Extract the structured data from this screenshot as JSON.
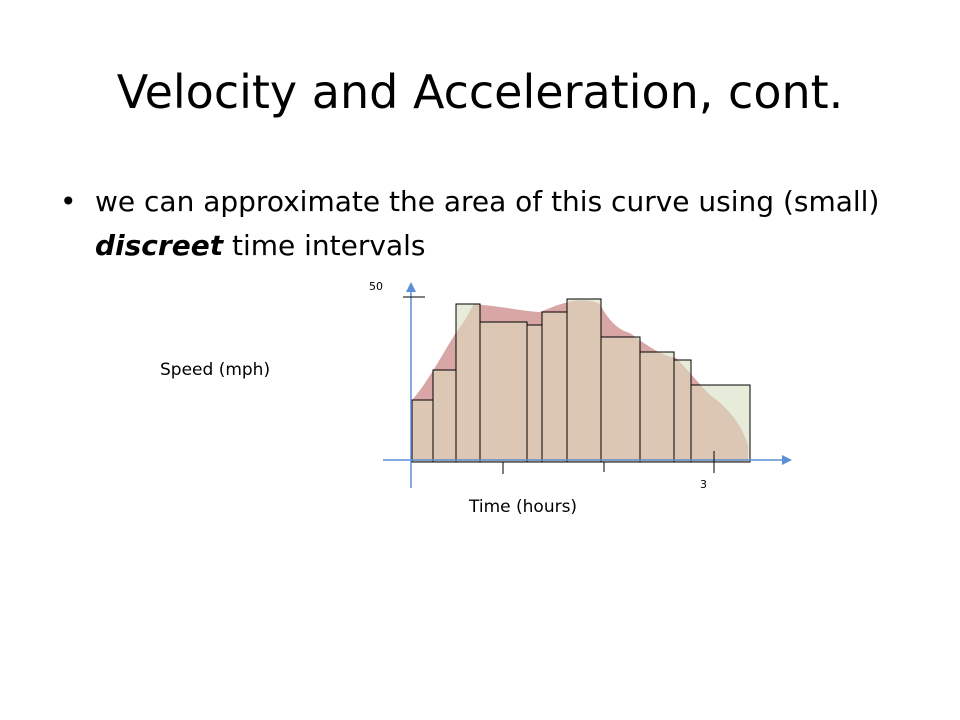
{
  "slide": {
    "title": "Velocity and Acceleration, cont.",
    "bullet": {
      "before": "we can approximate the area of this curve using (small) ",
      "emphasis": "discreet",
      "after": " time intervals"
    }
  },
  "diagram": {
    "y_axis_label": "Speed (mph)",
    "x_axis_label": "Time (hours)",
    "y_tick_label": "50",
    "x_tick_label": "3",
    "colors": {
      "curve_fill": "#d9a6a6",
      "bar_fill": "#e6ecd9",
      "overlap_fill": "#dcc7b5",
      "axis": "#5b8fd6",
      "outline": "#000000"
    }
  }
}
